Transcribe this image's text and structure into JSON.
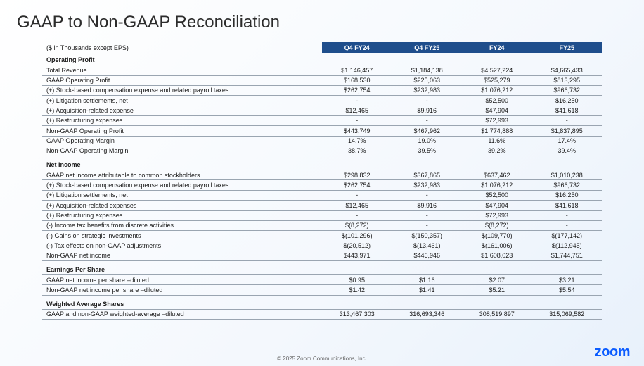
{
  "title": "GAAP to Non-GAAP Reconciliation",
  "subtitle": "($ in Thousands except EPS)",
  "columns": [
    "Q4 FY24",
    "Q4 FY25",
    "FY24",
    "FY25"
  ],
  "sections": [
    {
      "header": "Operating Profit",
      "rows": [
        {
          "label": "Total Revenue",
          "vals": [
            "$1,146,457",
            "$1,184,138",
            "$4,527,224",
            "$4,665,433"
          ]
        },
        {
          "label": "GAAP Operating Profit",
          "vals": [
            "$168,530",
            "$225,063",
            "$525,279",
            "$813,295"
          ]
        },
        {
          "label": "(+) Stock-based compensation expense and related payroll taxes",
          "vals": [
            "$262,754",
            "$232,983",
            "$1,076,212",
            "$966,732"
          ]
        },
        {
          "label": "(+) Litigation settlements, net",
          "vals": [
            "-",
            "-",
            "$52,500",
            "$16,250"
          ]
        },
        {
          "label": "(+) Acquisition-related expense",
          "vals": [
            "$12,465",
            "$9,916",
            "$47,904",
            "$41,618"
          ]
        },
        {
          "label": "(+) Restructuring expenses",
          "vals": [
            "-",
            "-",
            "$72,993",
            "-"
          ]
        },
        {
          "label": "Non-GAAP Operating Profit",
          "vals": [
            "$443,749",
            "$467,962",
            "$1,774,888",
            "$1,837,895"
          ]
        },
        {
          "label": "GAAP Operating Margin",
          "vals": [
            "14.7%",
            "19.0%",
            "11.6%",
            "17.4%"
          ]
        },
        {
          "label": "Non-GAAP Operating Margin",
          "vals": [
            "38.7%",
            "39.5%",
            "39.2%",
            "39.4%"
          ]
        }
      ]
    },
    {
      "header": "Net Income",
      "rows": [
        {
          "label": "GAAP net income attributable to common stockholders",
          "vals": [
            "$298,832",
            "$367,865",
            "$637,462",
            "$1,010,238"
          ]
        },
        {
          "label": "(+) Stock-based compensation expense and related payroll taxes",
          "vals": [
            "$262,754",
            "$232,983",
            "$1,076,212",
            "$966,732"
          ]
        },
        {
          "label": "(+) Litigation settlements, net",
          "vals": [
            "-",
            "-",
            "$52,500",
            "$16,250"
          ]
        },
        {
          "label": "(+) Acquisition-related expenses",
          "vals": [
            "$12,465",
            "$9,916",
            "$47,904",
            "$41,618"
          ]
        },
        {
          "label": "(+) Restructuring expenses",
          "vals": [
            "-",
            "-",
            "$72,993",
            "-"
          ]
        },
        {
          "label": "(-) Income tax benefits from discrete activities",
          "vals": [
            "$(8,272)",
            "-",
            "$(8,272)",
            "-"
          ]
        },
        {
          "label": "(-) Gains on strategic investments",
          "vals": [
            "$(101,296)",
            "$(150,357)",
            "$(109,770)",
            "$(177,142)"
          ]
        },
        {
          "label": "(-) Tax effects on non-GAAP adjustments",
          "vals": [
            "$(20,512)",
            "$(13,461)",
            "$(161,006)",
            "$(112,945)"
          ]
        },
        {
          "label": "Non-GAAP net income",
          "vals": [
            "$443,971",
            "$446,946",
            "$1,608,023",
            "$1,744,751"
          ]
        }
      ]
    },
    {
      "header": "Earnings Per Share",
      "rows": [
        {
          "label": "GAAP net income per share –diluted",
          "vals": [
            "$0.95",
            "$1.16",
            "$2.07",
            "$3.21"
          ]
        },
        {
          "label": "Non-GAAP net income per share –diluted",
          "vals": [
            "$1.42",
            "$1.41",
            "$5.21",
            "$5.54"
          ]
        }
      ]
    },
    {
      "header": "Weighted Average Shares",
      "rows": [
        {
          "label": "GAAP and non-GAAP weighted-average –diluted",
          "vals": [
            "313,467,303",
            "316,693,346",
            "308,519,897",
            "315,069,582"
          ]
        }
      ]
    }
  ],
  "copyright": "© 2025 Zoom Communications, Inc.",
  "logo": "zoom",
  "style": {
    "header_bg": "#1f4e8c",
    "header_fg": "#ffffff",
    "row_border": "#9aa5b1",
    "title_fontsize": 24,
    "body_fontsize": 9,
    "logo_color": "#0b5cff"
  }
}
